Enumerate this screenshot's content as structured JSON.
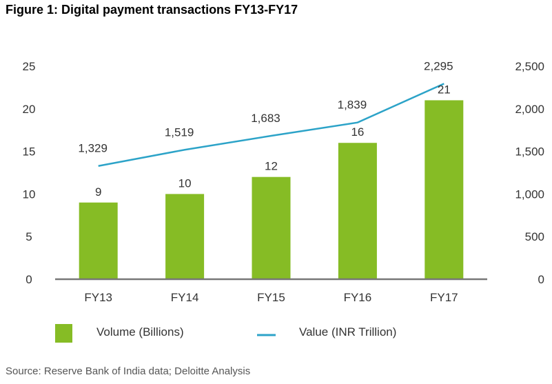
{
  "chart_data": {
    "type": "bar",
    "title": "Figure 1: Digital payment transactions FY13-FY17",
    "source": "Source: Reserve Bank of India data; Deloitte Analysis",
    "categories": [
      "FY13",
      "FY14",
      "FY15",
      "FY16",
      "FY17"
    ],
    "series": [
      {
        "name": "Volume (Billions)",
        "type": "bar",
        "axis": "left",
        "values": [
          9,
          10,
          12,
          16,
          21
        ],
        "labels": [
          "9",
          "10",
          "12",
          "16",
          "21"
        ]
      },
      {
        "name": "Value (INR Trillion)",
        "type": "line",
        "axis": "right",
        "values": [
          1329,
          1519,
          1683,
          1839,
          2295
        ],
        "labels": [
          "1,329",
          "1,519",
          "1,683",
          "1,839",
          "2,295"
        ]
      }
    ],
    "y_left": {
      "range": [
        0,
        25
      ],
      "ticks": [
        "0",
        "5",
        "10",
        "15",
        "20",
        "25"
      ]
    },
    "y_right": {
      "range": [
        0,
        2500
      ],
      "ticks": [
        "0",
        "500",
        "1,000",
        "1,500",
        "2,000",
        "2,500"
      ]
    },
    "grid": false,
    "legend_position": "bottom",
    "colors": {
      "bar": "#86BC25",
      "line": "#2CA3C8",
      "axis": "#777777"
    }
  }
}
